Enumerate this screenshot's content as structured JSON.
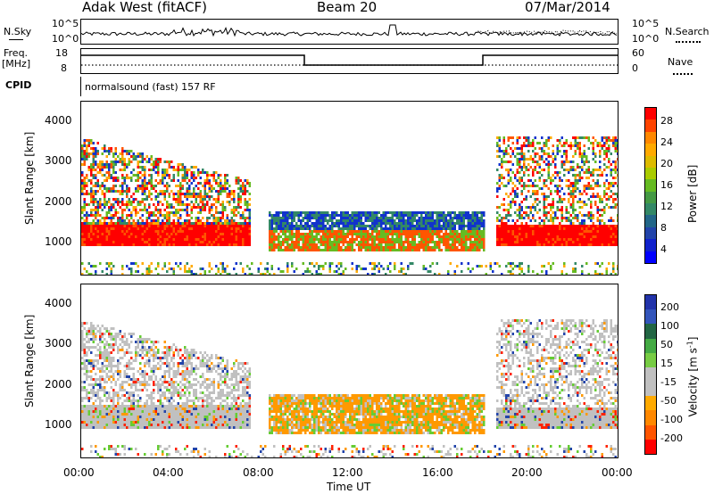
{
  "header": {
    "radar": "Adak West (fitACF)",
    "beam": "Beam 20",
    "date": "07/Mar/2014"
  },
  "top_panel": {
    "left_label": "N.Sky",
    "right_label": "N.Search",
    "left_ticks": [
      "10^5",
      "10^0"
    ],
    "right_ticks": [
      "10^5",
      "10^0"
    ]
  },
  "freq_panel": {
    "left_label_1": "Freq.",
    "left_label_2": "[MHz]",
    "right_label": "Nave",
    "left_ticks": [
      "18",
      "8"
    ],
    "right_ticks": [
      "60",
      "0"
    ]
  },
  "cpid": {
    "label": "CPID",
    "program": "normalsound (fast) 157 RF"
  },
  "chart_data": [
    {
      "type": "heatmap",
      "title": "Power",
      "ylabel": "Slant Range [km]",
      "colorbar_label": "Power [dB]",
      "colorbar_ticks": [
        "28",
        "24",
        "20",
        "16",
        "12",
        "8",
        "4"
      ],
      "colorbar_colors": [
        "#ff0000",
        "#ff4400",
        "#ff8800",
        "#ffaa00",
        "#ddbb00",
        "#aacc00",
        "#66bb22",
        "#449944",
        "#338866",
        "#226688",
        "#2244aa",
        "#1122cc",
        "#0000ff"
      ],
      "ylim": [
        0,
        4500
      ],
      "yticks": [
        "4000",
        "3000",
        "2000",
        "1000"
      ],
      "xticks": [
        "00:00",
        "04:00",
        "08:00",
        "12:00",
        "16:00",
        "20:00",
        "00:00"
      ]
    },
    {
      "type": "heatmap",
      "title": "Velocity",
      "ylabel": "Slant Range [km]",
      "colorbar_label": "Velocity [m s^-1]",
      "colorbar_ticks": [
        "200",
        "100",
        "50",
        "15",
        "-15",
        "-50",
        "-100",
        "-200"
      ],
      "colorbar_colors": [
        "#2233aa",
        "#3355bb",
        "#226644",
        "#44aa44",
        "#77cc44",
        "#c0c0c0",
        "#c0c0c0",
        "#ffaa00",
        "#ff8800",
        "#ff5500",
        "#ff0000"
      ],
      "ylim": [
        0,
        4500
      ],
      "yticks": [
        "4000",
        "3000",
        "2000",
        "1000"
      ],
      "xticks": [
        "00:00",
        "04:00",
        "08:00",
        "12:00",
        "16:00",
        "20:00",
        "00:00"
      ],
      "xlabel": "Time UT"
    }
  ]
}
